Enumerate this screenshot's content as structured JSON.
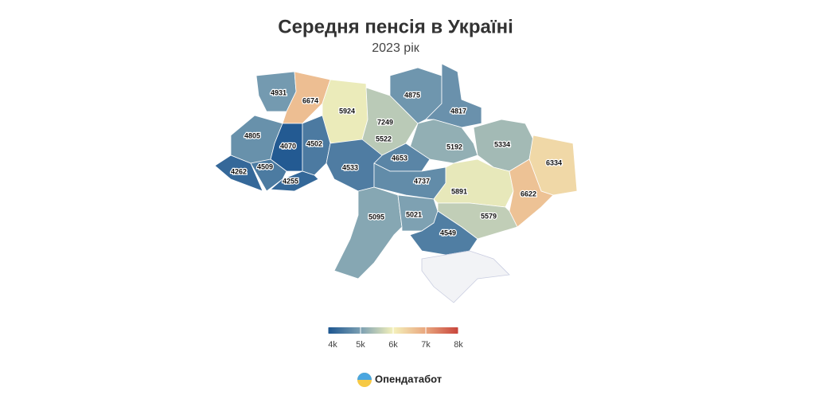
{
  "chart_data": {
    "type": "choropleth",
    "title": "Середня пенсія в Україні",
    "subtitle": "2023 рік",
    "values": [
      4931,
      6674,
      5924,
      7249,
      5522,
      4875,
      4817,
      4805,
      4070,
      4502,
      5192,
      5334,
      6334,
      4262,
      4509,
      4653,
      4533,
      4255,
      4737,
      5891,
      6622,
      5095,
      5021,
      5579,
      4549
    ],
    "colorscale": [
      "#1c5590",
      "#7b9fb2",
      "#f4f1bb",
      "#e9a67e",
      "#c8443b"
    ],
    "scale_lim": [
      4000,
      8000
    ],
    "scale_ticks": [
      {
        "value": 4000,
        "label": "4k"
      },
      {
        "value": 5000,
        "label": "5k"
      },
      {
        "value": 6000,
        "label": "6k"
      },
      {
        "value": 7000,
        "label": "7k"
      },
      {
        "value": 8000,
        "label": "8k"
      }
    ]
  },
  "brand": "Опендатабот"
}
